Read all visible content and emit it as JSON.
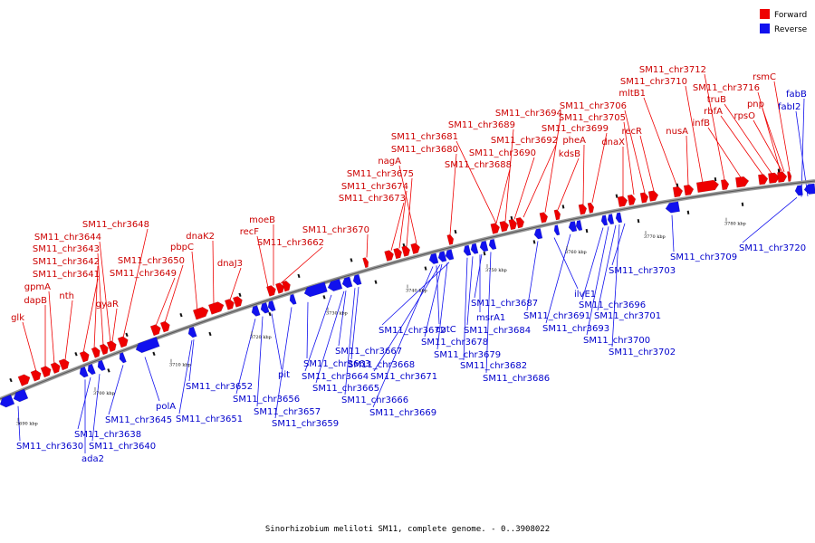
{
  "legend": [
    {
      "label": "Forward",
      "color": "#ee0000"
    },
    {
      "label": "Reverse",
      "color": "#1111ee"
    }
  ],
  "caption": "Sinorhizobium meliloti SM11, complete genome. - 0..3908022",
  "colors": {
    "forward": "#ee0000",
    "reverse": "#1111ee",
    "backbone": "#999999"
  },
  "ticks": [
    "3690 kbp",
    "3700 kbp",
    "3710 kbp",
    "3720 kbp",
    "3730 kbp",
    "3740 kbp",
    "3750 kbp",
    "3760 kbp",
    "3770 kbp",
    "3780 kbp"
  ],
  "forward_labels": [
    "glk",
    "dapB",
    "gpmA",
    "nth",
    "SM11_chr3641",
    "SM11_chr3642",
    "SM11_chr3643",
    "SM11_chr3644",
    "gyaR",
    "SM11_chr3648",
    "SM11_chr3649",
    "SM11_chr3650",
    "pbpC",
    "dnaK2",
    "dnaJ3",
    "recF",
    "moeB",
    "SM11_chr3662",
    "SM11_chr3670",
    "SM11_chr3673",
    "SM11_chr3674",
    "SM11_chr3675",
    "nagA",
    "SM11_chr3680",
    "SM11_chr3681",
    "SM11_chr3688",
    "SM11_chr3689",
    "SM11_chr3690",
    "SM11_chr3692",
    "SM11_chr3694",
    "kdsB",
    "pheA",
    "SM11_chr3699",
    "dnaX",
    "SM11_chr3705",
    "SM11_chr3706",
    "recR",
    "mltB1",
    "nusA",
    "SM11_chr3710",
    "SM11_chr3712",
    "infB",
    "rbfA",
    "truB",
    "SM11_chr3716",
    "rpsO",
    "pnp",
    "rsmC"
  ],
  "reverse_labels": [
    "SM11_chr3630",
    "ada2",
    "SM11_chr3638",
    "SM11_chr3640",
    "SM11_chr3645",
    "polA",
    "SM11_chr3651",
    "SM11_chr3652",
    "SM11_chr3656",
    "SM11_chr3657",
    "pit",
    "SM11_chr3659",
    "SM11_chr3663",
    "SM11_chr3664",
    "SM11_chr3665",
    "SM11_chr3666",
    "SM11_chr3667",
    "SM11_chr3668",
    "SM11_chr3669",
    "SM11_chr3671",
    "SM11_chr3672",
    "cutC",
    "SM11_chr3678",
    "SM11_chr3679",
    "SM11_chr3682",
    "SM11_chr3684",
    "msrA1",
    "SM11_chr3686",
    "SM11_chr3687",
    "SM11_chr3691",
    "ilvE1",
    "SM11_chr3693",
    "SM11_chr3696",
    "SM11_chr3700",
    "SM11_chr3701",
    "SM11_chr3702",
    "SM11_chr3703",
    "SM11_chr3709",
    "SM11_chr3720",
    "fabB",
    "fabI2"
  ]
}
